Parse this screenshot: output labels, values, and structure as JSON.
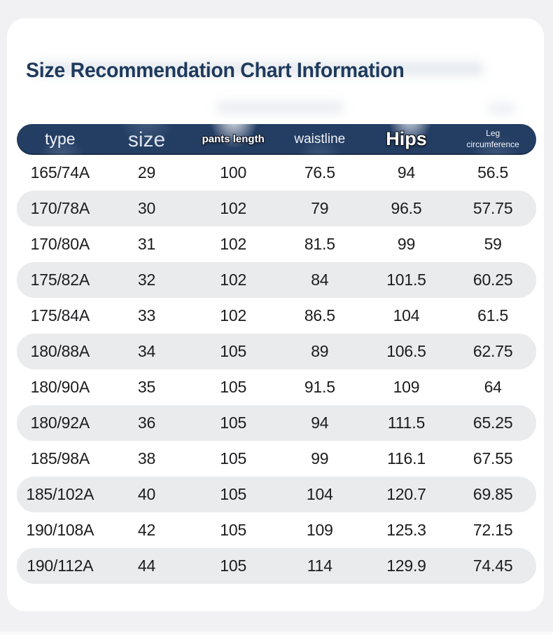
{
  "page": {
    "title": "Size Recommendation Chart Information"
  },
  "theme": {
    "page_bg": "#f1f1f3",
    "card_bg": "#ffffff",
    "title_color": "#1e3a5c",
    "header_bg": "#233d63",
    "header_text": "#eef1f6",
    "row_alt_bg": "#eaebed",
    "cell_text": "#1c1c1e"
  },
  "chart_data": {
    "type": "table",
    "title": "Size Recommendation Chart Information",
    "columns": [
      "type",
      "size",
      "pants length",
      "waistline",
      "Hips",
      "Leg circumference"
    ],
    "rows": [
      [
        "165/74A",
        "29",
        "100",
        "76.5",
        "94",
        "56.5"
      ],
      [
        "170/78A",
        "30",
        "102",
        "79",
        "96.5",
        "57.75"
      ],
      [
        "170/80A",
        "31",
        "102",
        "81.5",
        "99",
        "59"
      ],
      [
        "175/82A",
        "32",
        "102",
        "84",
        "101.5",
        "60.25"
      ],
      [
        "175/84A",
        "33",
        "102",
        "86.5",
        "104",
        "61.5"
      ],
      [
        "180/88A",
        "34",
        "105",
        "89",
        "106.5",
        "62.75"
      ],
      [
        "180/90A",
        "35",
        "105",
        "91.5",
        "109",
        "64"
      ],
      [
        "180/92A",
        "36",
        "105",
        "94",
        "111.5",
        "65.25"
      ],
      [
        "185/98A",
        "38",
        "105",
        "99",
        "116.1",
        "67.55"
      ],
      [
        "185/102A",
        "40",
        "105",
        "104",
        "120.7",
        "69.85"
      ],
      [
        "190/108A",
        "42",
        "105",
        "109",
        "125.3",
        "72.15"
      ],
      [
        "190/112A",
        "44",
        "105",
        "114",
        "129.9",
        "74.45"
      ]
    ],
    "layout": {
      "zebra_striping": true,
      "header_style": "navy pill bar, white labels",
      "alt_row_style": "light gray pill rows"
    }
  }
}
